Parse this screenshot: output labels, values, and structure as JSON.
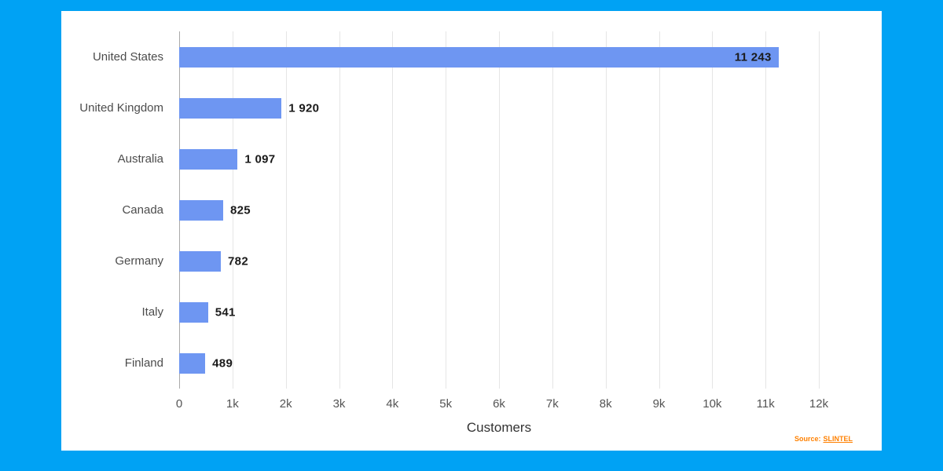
{
  "page": {
    "background_color": "#00a2f4",
    "card_color": "#ffffff"
  },
  "chart_data": {
    "type": "bar",
    "orientation": "horizontal",
    "title": "",
    "xlabel": "Customers",
    "ylabel": "",
    "categories": [
      "United States",
      "United Kingdom",
      "Australia",
      "Canada",
      "Germany",
      "Italy",
      "Finland"
    ],
    "values": [
      11243,
      1920,
      1097,
      825,
      782,
      541,
      489
    ],
    "value_labels": [
      "11 243",
      "1 920",
      "1 097",
      "825",
      "782",
      "541",
      "489"
    ],
    "xlim": [
      0,
      12000
    ],
    "x_ticks": [
      0,
      1000,
      2000,
      3000,
      4000,
      5000,
      6000,
      7000,
      8000,
      9000,
      10000,
      11000,
      12000
    ],
    "x_tick_labels": [
      "0",
      "1k",
      "2k",
      "3k",
      "4k",
      "5k",
      "6k",
      "7k",
      "8k",
      "9k",
      "10k",
      "11k",
      "12k"
    ],
    "grid": true,
    "legend": false,
    "bar_color": "#6e96f2"
  },
  "source": {
    "prefix": "Source:",
    "name": "SLINTEL"
  }
}
